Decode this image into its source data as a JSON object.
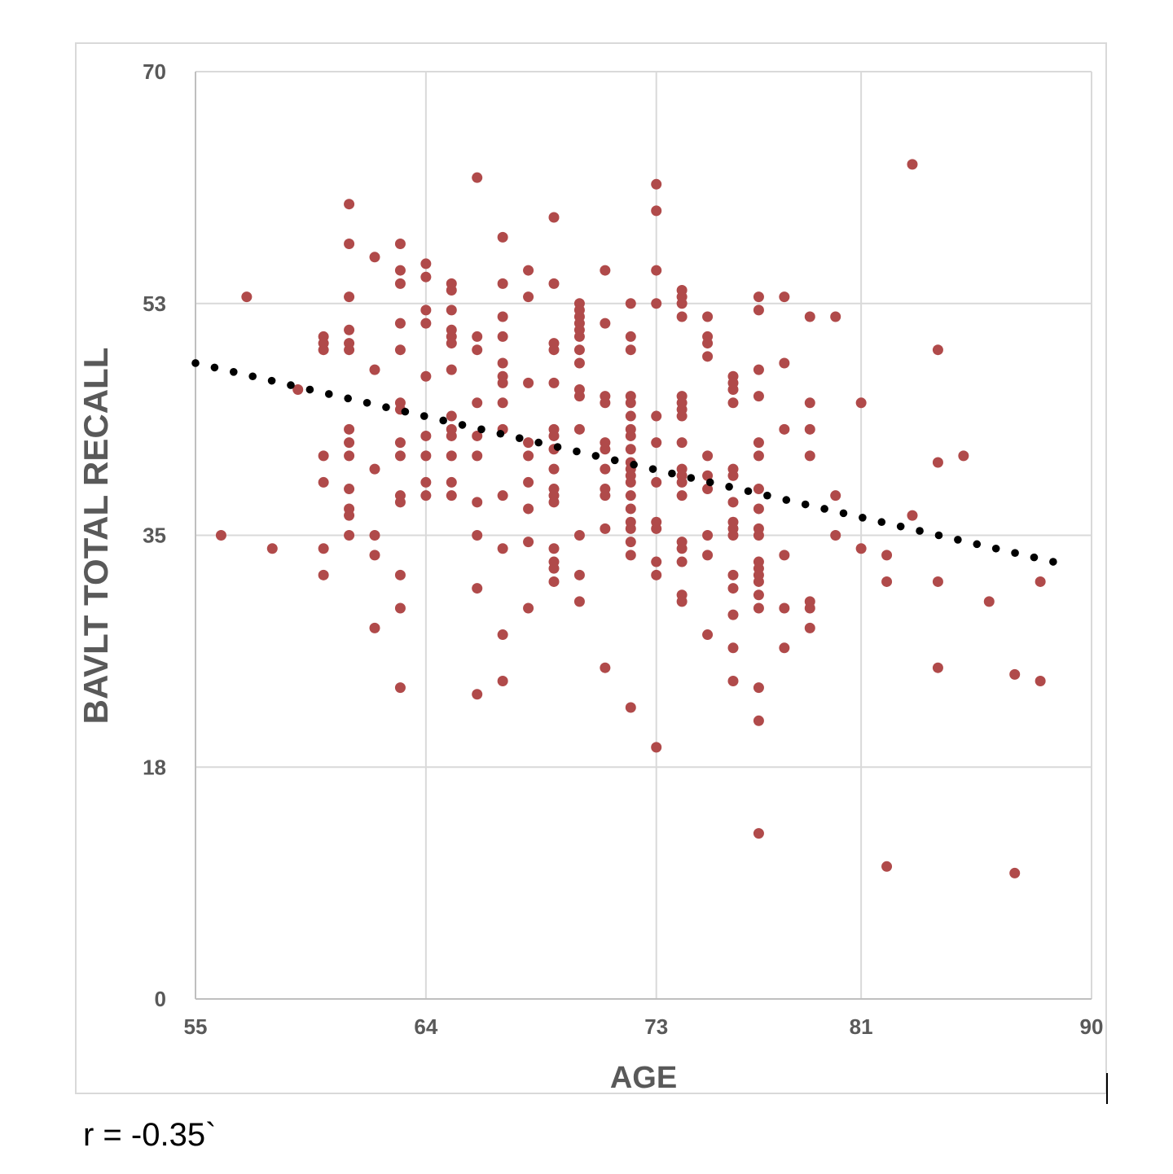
{
  "chart_data": {
    "type": "scatter",
    "xlabel": "AGE",
    "ylabel": "BAVLT TOTAL RECALL",
    "xlim": [
      55,
      90
    ],
    "ylim": [
      0,
      70
    ],
    "x_ticks": [
      "55",
      "64",
      "73",
      "81",
      "90"
    ],
    "x_tick_values": [
      55,
      64,
      73,
      81,
      90
    ],
    "y_ticks": [
      "70",
      "53",
      "35",
      "18",
      "0"
    ],
    "y_tick_values": [
      70,
      52.5,
      35,
      17.5,
      0
    ],
    "grid": true,
    "trendline": {
      "style": "dotted",
      "x": [
        55,
        88.5
      ],
      "y": [
        48,
        33
      ]
    },
    "series": [
      {
        "color": "#b04a4a",
        "points": [
          [
            56,
            35
          ],
          [
            57,
            53
          ],
          [
            58,
            34
          ],
          [
            59,
            46
          ],
          [
            60,
            50
          ],
          [
            60,
            49.5
          ],
          [
            60,
            49
          ],
          [
            60,
            41
          ],
          [
            60,
            39
          ],
          [
            60,
            34
          ],
          [
            60,
            32
          ],
          [
            61,
            60
          ],
          [
            61,
            57
          ],
          [
            61,
            53
          ],
          [
            61,
            50.5
          ],
          [
            61,
            49.5
          ],
          [
            61,
            49
          ],
          [
            61,
            43
          ],
          [
            61,
            42
          ],
          [
            61,
            41
          ],
          [
            61,
            38.5
          ],
          [
            61,
            37
          ],
          [
            61,
            36.5
          ],
          [
            61,
            35
          ],
          [
            62,
            56
          ],
          [
            62,
            47.5
          ],
          [
            62,
            40
          ],
          [
            62,
            35
          ],
          [
            62,
            33.5
          ],
          [
            62,
            28
          ],
          [
            63,
            57
          ],
          [
            63,
            55
          ],
          [
            63,
            54
          ],
          [
            63,
            51
          ],
          [
            63,
            49
          ],
          [
            63,
            45
          ],
          [
            63,
            44.5
          ],
          [
            63,
            42
          ],
          [
            63,
            41
          ],
          [
            63,
            38
          ],
          [
            63,
            37.5
          ],
          [
            63,
            32
          ],
          [
            63,
            29.5
          ],
          [
            63,
            23.5
          ],
          [
            64,
            55.5
          ],
          [
            64,
            54.5
          ],
          [
            64,
            52
          ],
          [
            64,
            51
          ],
          [
            64,
            47
          ],
          [
            64,
            42.5
          ],
          [
            64,
            41
          ],
          [
            64,
            39
          ],
          [
            64,
            38
          ],
          [
            65,
            54
          ],
          [
            65,
            53.5
          ],
          [
            65,
            52
          ],
          [
            65,
            50.5
          ],
          [
            65,
            50
          ],
          [
            65,
            49.5
          ],
          [
            65,
            47.5
          ],
          [
            65,
            44
          ],
          [
            65,
            43
          ],
          [
            65,
            42.5
          ],
          [
            65,
            41
          ],
          [
            65,
            39
          ],
          [
            65,
            38
          ],
          [
            66,
            62
          ],
          [
            66,
            50
          ],
          [
            66,
            49
          ],
          [
            66,
            45
          ],
          [
            66,
            42.5
          ],
          [
            66,
            41
          ],
          [
            66,
            37.5
          ],
          [
            66,
            35
          ],
          [
            66,
            31
          ],
          [
            66,
            23
          ],
          [
            67,
            57.5
          ],
          [
            67,
            54
          ],
          [
            67,
            51.5
          ],
          [
            67,
            50
          ],
          [
            67,
            48
          ],
          [
            67,
            47
          ],
          [
            67,
            46.5
          ],
          [
            67,
            45
          ],
          [
            67,
            43
          ],
          [
            67,
            38
          ],
          [
            67,
            34
          ],
          [
            67,
            27.5
          ],
          [
            67,
            24
          ],
          [
            68,
            55
          ],
          [
            68,
            53
          ],
          [
            68,
            46.5
          ],
          [
            68,
            42
          ],
          [
            68,
            41
          ],
          [
            68,
            39
          ],
          [
            68,
            37
          ],
          [
            68,
            34.5
          ],
          [
            68,
            29.5
          ],
          [
            69,
            59
          ],
          [
            69,
            54
          ],
          [
            69,
            49.5
          ],
          [
            69,
            49
          ],
          [
            69,
            46.5
          ],
          [
            69,
            43
          ],
          [
            69,
            42.5
          ],
          [
            69,
            41.5
          ],
          [
            69,
            40
          ],
          [
            69,
            38.5
          ],
          [
            69,
            38
          ],
          [
            69,
            37.5
          ],
          [
            69,
            34
          ],
          [
            69,
            33
          ],
          [
            69,
            32.5
          ],
          [
            69,
            31.5
          ],
          [
            70,
            52.5
          ],
          [
            70,
            52
          ],
          [
            70,
            51.5
          ],
          [
            70,
            51
          ],
          [
            70,
            50.5
          ],
          [
            70,
            50
          ],
          [
            70,
            49
          ],
          [
            70,
            48
          ],
          [
            70,
            46
          ],
          [
            70,
            45.5
          ],
          [
            70,
            43
          ],
          [
            70,
            35
          ],
          [
            70,
            32
          ],
          [
            70,
            30
          ],
          [
            71,
            55
          ],
          [
            71,
            51
          ],
          [
            71,
            45.5
          ],
          [
            71,
            45
          ],
          [
            71,
            42
          ],
          [
            71,
            41.5
          ],
          [
            71,
            40
          ],
          [
            71,
            38.5
          ],
          [
            71,
            38
          ],
          [
            71,
            35.5
          ],
          [
            71,
            25
          ],
          [
            72,
            52.5
          ],
          [
            72,
            50
          ],
          [
            72,
            49
          ],
          [
            72,
            45.5
          ],
          [
            72,
            45
          ],
          [
            72,
            44
          ],
          [
            72,
            43
          ],
          [
            72,
            42.5
          ],
          [
            72,
            41.5
          ],
          [
            72,
            40.5
          ],
          [
            72,
            40
          ],
          [
            72,
            39.5
          ],
          [
            72,
            39
          ],
          [
            72,
            38
          ],
          [
            72,
            37
          ],
          [
            72,
            36
          ],
          [
            72,
            35.5
          ],
          [
            72,
            34.5
          ],
          [
            72,
            33.5
          ],
          [
            72,
            22
          ],
          [
            73,
            61.5
          ],
          [
            73,
            59.5
          ],
          [
            73,
            55
          ],
          [
            73,
            52.5
          ],
          [
            73,
            44
          ],
          [
            73,
            42
          ],
          [
            73,
            39
          ],
          [
            73,
            36
          ],
          [
            73,
            35.5
          ],
          [
            73,
            33
          ],
          [
            73,
            32
          ],
          [
            73,
            19
          ],
          [
            74,
            53.5
          ],
          [
            74,
            53
          ],
          [
            74,
            52.5
          ],
          [
            74,
            51.5
          ],
          [
            74,
            45.5
          ],
          [
            74,
            45
          ],
          [
            74,
            44.5
          ],
          [
            74,
            44
          ],
          [
            74,
            42
          ],
          [
            74,
            40
          ],
          [
            74,
            39.5
          ],
          [
            74,
            39
          ],
          [
            74,
            38
          ],
          [
            74,
            34.5
          ],
          [
            74,
            34
          ],
          [
            74,
            33
          ],
          [
            74,
            30.5
          ],
          [
            74,
            30
          ],
          [
            75,
            51.5
          ],
          [
            75,
            50
          ],
          [
            75,
            49.5
          ],
          [
            75,
            48.5
          ],
          [
            75,
            41
          ],
          [
            75,
            39.5
          ],
          [
            75,
            38.5
          ],
          [
            75,
            35
          ],
          [
            75,
            33.5
          ],
          [
            75,
            27.5
          ],
          [
            76,
            47
          ],
          [
            76,
            46.5
          ],
          [
            76,
            46
          ],
          [
            76,
            45
          ],
          [
            76,
            40
          ],
          [
            76,
            39.5
          ],
          [
            76,
            37.5
          ],
          [
            76,
            36
          ],
          [
            76,
            35.5
          ],
          [
            76,
            35
          ],
          [
            76,
            32
          ],
          [
            76,
            31
          ],
          [
            76,
            29
          ],
          [
            76,
            26.5
          ],
          [
            76,
            24
          ],
          [
            77,
            53
          ],
          [
            77,
            52
          ],
          [
            77,
            47.5
          ],
          [
            77,
            45.5
          ],
          [
            77,
            42
          ],
          [
            77,
            41
          ],
          [
            77,
            38.5
          ],
          [
            77,
            37
          ],
          [
            77,
            35.5
          ],
          [
            77,
            35
          ],
          [
            77,
            33
          ],
          [
            77,
            32.5
          ],
          [
            77,
            32
          ],
          [
            77,
            31.5
          ],
          [
            77,
            30.5
          ],
          [
            77,
            29.5
          ],
          [
            77,
            23.5
          ],
          [
            77,
            21
          ],
          [
            77,
            12.5
          ],
          [
            78,
            53
          ],
          [
            78,
            48
          ],
          [
            78,
            43
          ],
          [
            78,
            33.5
          ],
          [
            78,
            29.5
          ],
          [
            78,
            26.5
          ],
          [
            79,
            51.5
          ],
          [
            79,
            45
          ],
          [
            79,
            43
          ],
          [
            79,
            41
          ],
          [
            79,
            30
          ],
          [
            79,
            29.5
          ],
          [
            79,
            28
          ],
          [
            80,
            51.5
          ],
          [
            80,
            38
          ],
          [
            80,
            35
          ],
          [
            81,
            45
          ],
          [
            81,
            34
          ],
          [
            82,
            33.5
          ],
          [
            82,
            31.5
          ],
          [
            82,
            10
          ],
          [
            83,
            63
          ],
          [
            83,
            36.5
          ],
          [
            84,
            49
          ],
          [
            84,
            40.5
          ],
          [
            84,
            31.5
          ],
          [
            84,
            25
          ],
          [
            85,
            41
          ],
          [
            86,
            30
          ],
          [
            87,
            24.5
          ],
          [
            87,
            9.5
          ],
          [
            88,
            31.5
          ],
          [
            88,
            24
          ]
        ]
      }
    ]
  },
  "annotation": {
    "r_text": "r = -0.35`"
  }
}
